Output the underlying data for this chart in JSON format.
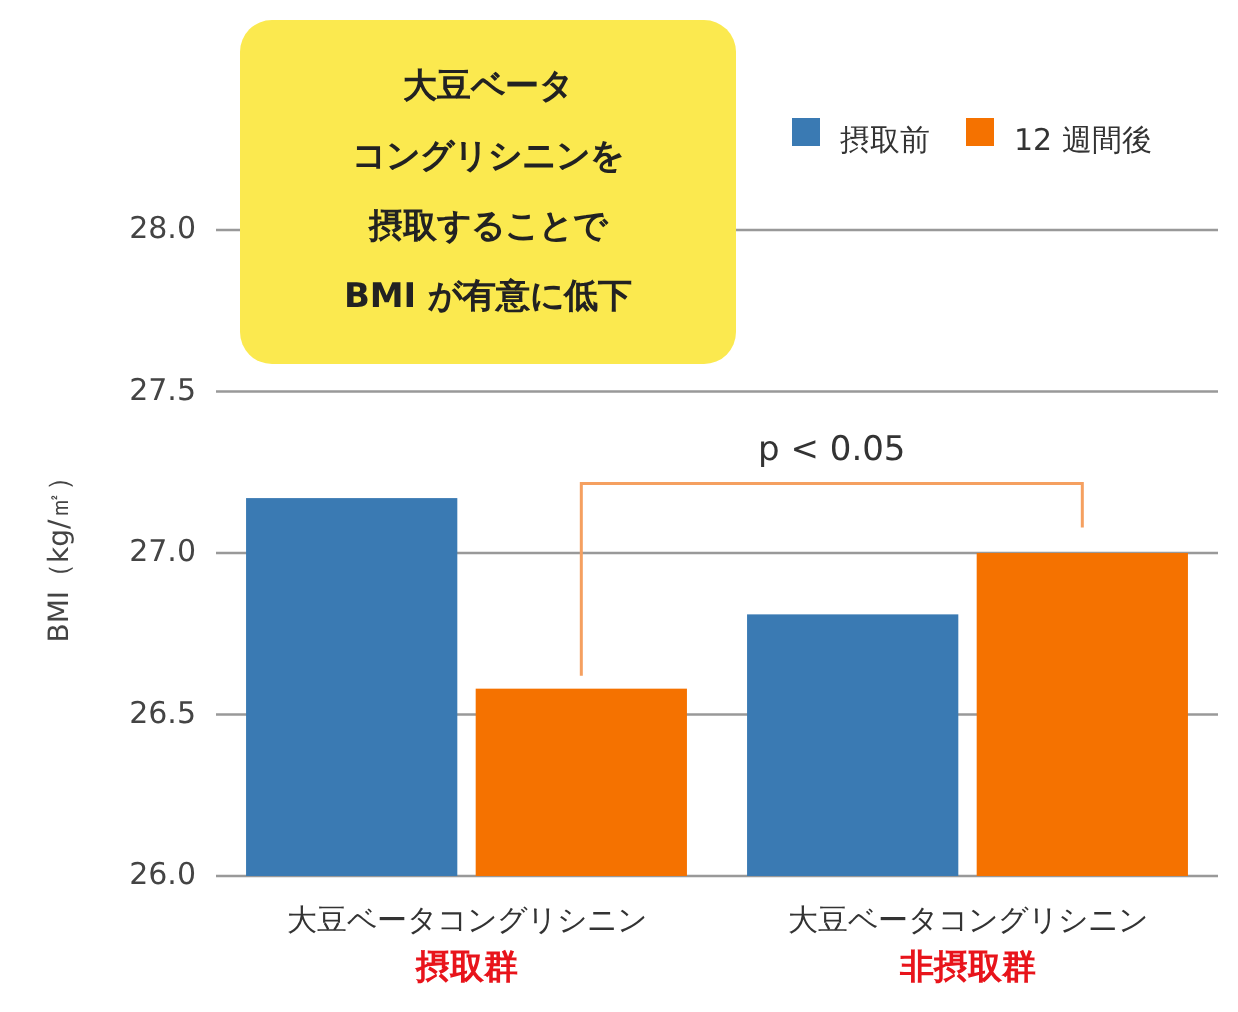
{
  "chart_data": {
    "type": "bar",
    "ylabel": "BMI（kg/㎡）",
    "categories": [
      "大豆ベータコングリシニン摂取群",
      "大豆ベータコングリシニン非摂取群"
    ],
    "series": [
      {
        "name": "摂取前",
        "color": "#3a7ab3",
        "values": [
          27.17,
          26.81
        ]
      },
      {
        "name": "12 週間後",
        "color": "#f57200",
        "values": [
          26.58,
          27.0
        ]
      }
    ],
    "ylim": [
      26,
      28
    ],
    "yticks": [
      {
        "value": 26,
        "label": "26.0"
      },
      {
        "value": 26.5,
        "label": "26.5"
      },
      {
        "value": 27,
        "label": "27.0"
      },
      {
        "value": 27.5,
        "label": "27.5"
      },
      {
        "value": 28,
        "label": "28.0"
      }
    ],
    "grid": "y",
    "legend": "top right",
    "annotations": [
      "大豆ベータ",
      "コングリシニンを",
      "摂取することで",
      "BMI が有意に低下",
      "p < 0.05"
    ]
  }
}
